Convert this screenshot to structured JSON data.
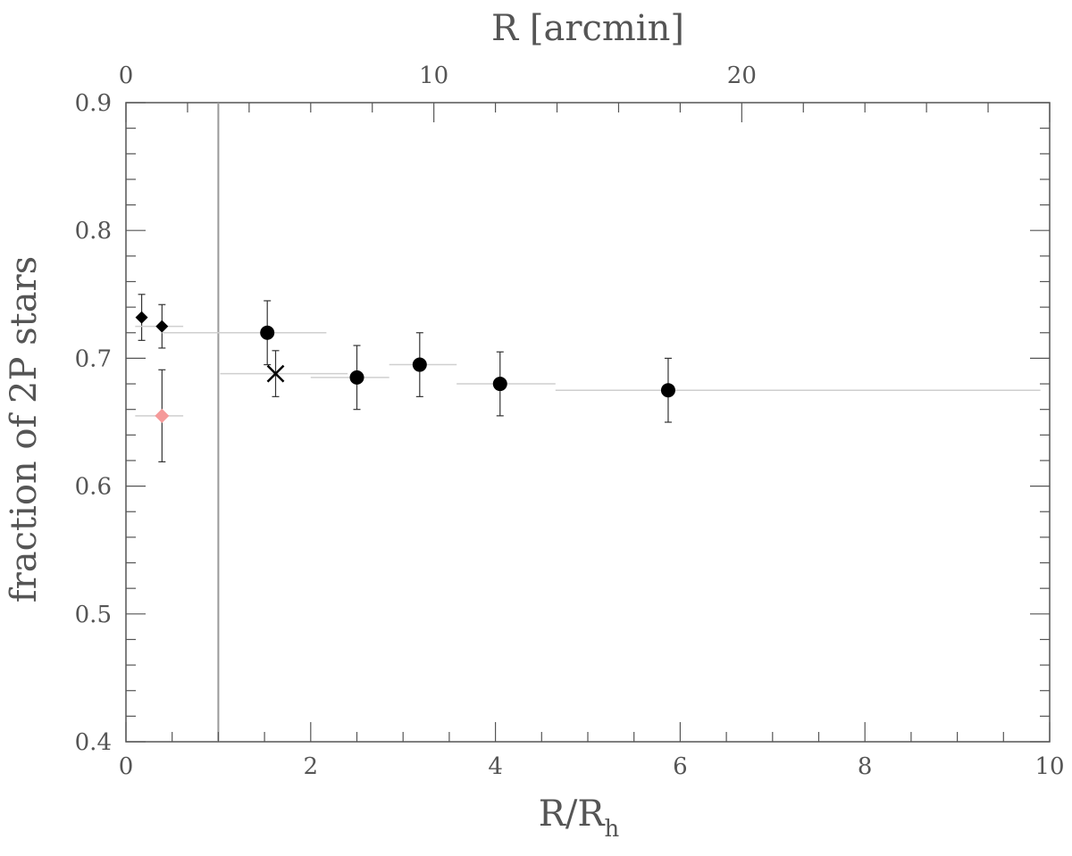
{
  "chart_data": {
    "type": "scatter",
    "xlabel": "R/R",
    "xlabel_sub": "h",
    "ylabel": "fraction of 2P stars",
    "x2label": "R [arcmin]",
    "xlim": [
      0,
      10
    ],
    "ylim": [
      0.4,
      0.9
    ],
    "x2lim": [
      0,
      30
    ],
    "x_ticks": [
      0,
      2,
      4,
      6,
      8,
      10
    ],
    "x_tick_labels": [
      "0",
      "2",
      "4",
      "6",
      "8",
      "10"
    ],
    "y_ticks": [
      0.4,
      0.5,
      0.6,
      0.7,
      0.8,
      0.9
    ],
    "y_tick_labels": [
      "0.4",
      "0.5",
      "0.6",
      "0.7",
      "0.8",
      "0.9"
    ],
    "x2_ticks": [
      0,
      10,
      20
    ],
    "x2_tick_labels": [
      "0",
      "10",
      "20"
    ],
    "vertical_line_x": 1.0,
    "grid": false,
    "series": [
      {
        "marker": "diamond",
        "color": "#000000",
        "points": [
          {
            "x": 0.17,
            "y": 0.732,
            "xmin": 0.17,
            "xmax": 0.17,
            "ylo": 0.714,
            "yhi": 0.75
          },
          {
            "x": 0.39,
            "y": 0.725,
            "xmin": 0.1,
            "xmax": 0.62,
            "ylo": 0.708,
            "yhi": 0.742
          }
        ]
      },
      {
        "marker": "diamond",
        "color": "#f59a9a",
        "points": [
          {
            "x": 0.39,
            "y": 0.655,
            "xmin": 0.1,
            "xmax": 0.62,
            "ylo": 0.619,
            "yhi": 0.691
          }
        ]
      },
      {
        "marker": "circle",
        "color": "#000000",
        "points": [
          {
            "x": 1.53,
            "y": 0.72,
            "xmin": 0.39,
            "xmax": 2.17,
            "ylo": 0.695,
            "yhi": 0.745
          },
          {
            "x": 2.5,
            "y": 0.685,
            "xmin": 2.0,
            "xmax": 2.85,
            "ylo": 0.66,
            "yhi": 0.71
          },
          {
            "x": 3.18,
            "y": 0.695,
            "xmin": 2.85,
            "xmax": 3.58,
            "ylo": 0.67,
            "yhi": 0.72
          },
          {
            "x": 4.05,
            "y": 0.68,
            "xmin": 3.58,
            "xmax": 4.65,
            "ylo": 0.655,
            "yhi": 0.705
          },
          {
            "x": 5.87,
            "y": 0.675,
            "xmin": 4.65,
            "xmax": 9.9,
            "ylo": 0.65,
            "yhi": 0.7
          }
        ]
      },
      {
        "marker": "cross",
        "color": "#000000",
        "points": [
          {
            "x": 1.62,
            "y": 0.688,
            "xmin": 1.02,
            "xmax": 2.4,
            "ylo": 0.67,
            "yhi": 0.706
          }
        ]
      }
    ]
  }
}
